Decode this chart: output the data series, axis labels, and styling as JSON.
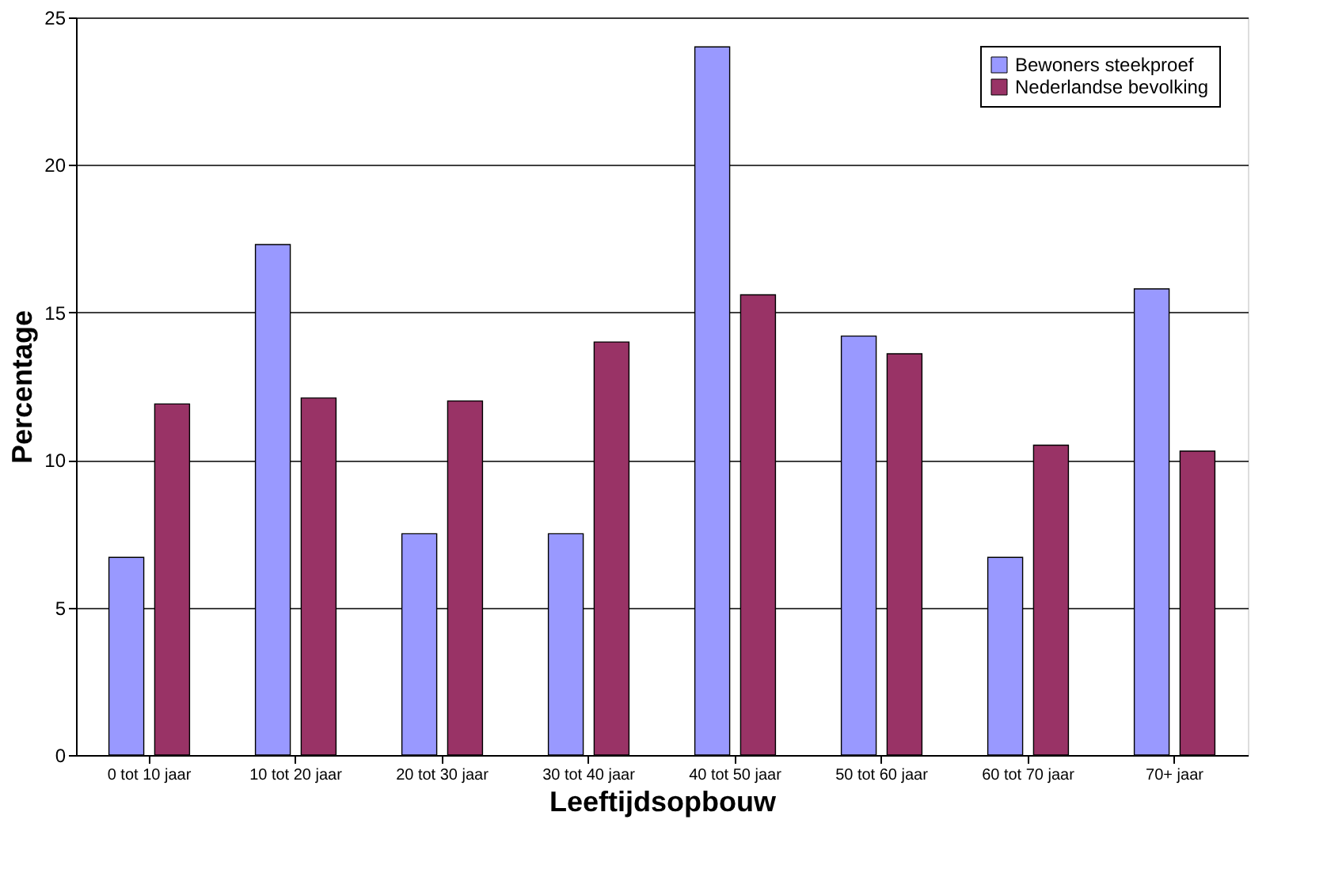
{
  "chart_data": {
    "type": "bar",
    "xlabel": "Leeftijdsopbouw",
    "ylabel": "Percentage",
    "categories": [
      "0 tot 10 jaar",
      "10 tot 20 jaar",
      "20 tot 30 jaar",
      "30 tot 40 jaar",
      "40 tot 50 jaar",
      "50 tot 60 jaar",
      "60 tot 70 jaar",
      "70+ jaar"
    ],
    "series": [
      {
        "name": "Bewoners steekproef",
        "color": "#9999ff",
        "values": [
          6.7,
          17.3,
          7.5,
          7.5,
          24.0,
          14.2,
          6.7,
          15.8
        ]
      },
      {
        "name": "Nederlandse bevolking",
        "color": "#993366",
        "values": [
          11.9,
          12.1,
          12.0,
          14.0,
          15.6,
          13.6,
          10.5,
          10.3
        ]
      }
    ],
    "ylim": [
      0,
      25
    ],
    "yticks": [
      0,
      5,
      10,
      15,
      20,
      25
    ],
    "grid": "y",
    "legend": "top right"
  }
}
